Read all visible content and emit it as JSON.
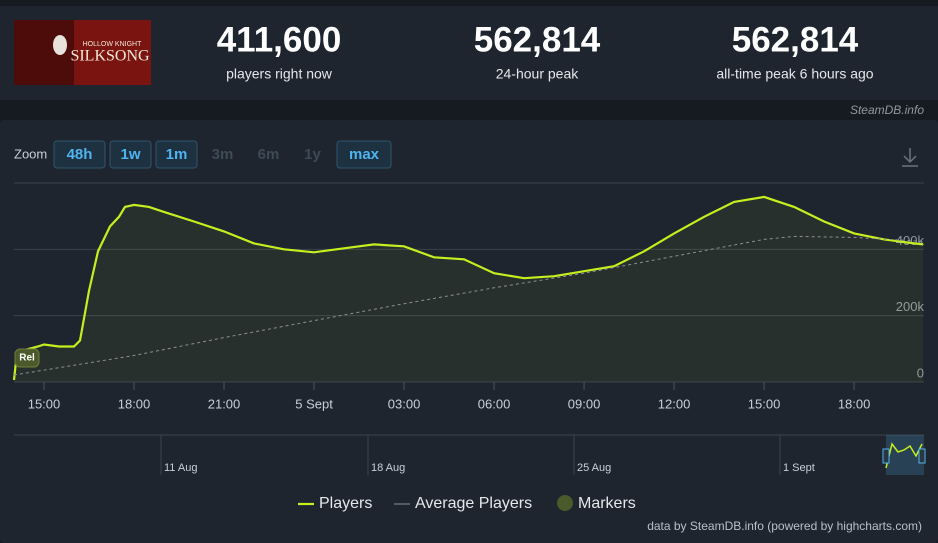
{
  "header": {
    "logo": {
      "small": "HOLLOW KNIGHT",
      "big": "SILKSONG"
    },
    "stats": [
      {
        "value": "411,600",
        "label": "players right now"
      },
      {
        "value": "562,814",
        "label": "24-hour peak"
      },
      {
        "value": "562,814",
        "label": "all-time peak 6 hours ago"
      }
    ],
    "source": "SteamDB.info"
  },
  "zoom": {
    "label": "Zoom",
    "buttons": [
      {
        "text": "48h",
        "enabled": true
      },
      {
        "text": "1w",
        "enabled": true
      },
      {
        "text": "1m",
        "enabled": true
      },
      {
        "text": "3m",
        "enabled": false
      },
      {
        "text": "6m",
        "enabled": false
      },
      {
        "text": "1y",
        "enabled": false
      },
      {
        "text": "max",
        "enabled": true
      }
    ]
  },
  "chart_data": {
    "type": "line",
    "xlim": [
      14,
      44.33
    ],
    "xticks": [
      {
        "value": 15,
        "label": "15:00"
      },
      {
        "value": 18,
        "label": "18:00"
      },
      {
        "value": 21,
        "label": "21:00"
      },
      {
        "value": 24,
        "label": "5 Sept"
      },
      {
        "value": 27,
        "label": "03:00"
      },
      {
        "value": 30,
        "label": "06:00"
      },
      {
        "value": 33,
        "label": "09:00"
      },
      {
        "value": 36,
        "label": "12:00"
      },
      {
        "value": 39,
        "label": "15:00"
      },
      {
        "value": 42,
        "label": "18:00"
      }
    ],
    "ylim": [
      0,
      600000
    ],
    "yticks": [
      {
        "value": 0,
        "label": "0"
      },
      {
        "value": 200000,
        "label": "200k"
      },
      {
        "value": 400000,
        "label": "400k"
      }
    ],
    "grid": true,
    "series": [
      {
        "name": "Players",
        "color": "#c5ef1f",
        "x": [
          14.0,
          14.1,
          14.3,
          14.8,
          15.0,
          15.5,
          16.0,
          16.2,
          16.5,
          16.8,
          17.2,
          17.5,
          17.7,
          18.0,
          18.5,
          19.0,
          20.0,
          21.0,
          22.0,
          23.0,
          24.0,
          25.0,
          26.0,
          27.0,
          28.0,
          29.0,
          30.0,
          31.0,
          32.0,
          33.0,
          34.0,
          35.0,
          36.0,
          37.0,
          38.0,
          39.0,
          40.0,
          41.0,
          42.0,
          43.0,
          44.0,
          44.3
        ],
        "values": [
          6000,
          90000,
          95000,
          107000,
          113000,
          107000,
          107000,
          125000,
          275000,
          394000,
          469000,
          498000,
          528000,
          534000,
          528000,
          513000,
          484000,
          454000,
          418000,
          400000,
          391000,
          403000,
          415000,
          409000,
          376000,
          370000,
          328000,
          313000,
          319000,
          334000,
          349000,
          394000,
          448000,
          498000,
          543000,
          558000,
          528000,
          484000,
          448000,
          430000,
          418000,
          415000
        ]
      },
      {
        "name": "Average Players",
        "color": "#8a8f96",
        "x": [
          14.0,
          18.0,
          21.0,
          24.0,
          27.0,
          30.0,
          33.0,
          36.0,
          39.0,
          40.0,
          42.0,
          44.3
        ],
        "values": [
          21000,
          80000,
          134000,
          185000,
          236000,
          284000,
          328000,
          379000,
          430000,
          439000,
          436000,
          424000
        ]
      }
    ],
    "markers": {
      "name": "Markers",
      "color": "#4a5a2a",
      "points": [
        {
          "x": 14.4,
          "label": "Rel"
        }
      ]
    },
    "navigator": {
      "labels": [
        "11 Aug",
        "18 Aug",
        "25 Aug",
        "1 Sept"
      ]
    },
    "credit": "data by SteamDB.info (powered by highcharts.com)"
  }
}
